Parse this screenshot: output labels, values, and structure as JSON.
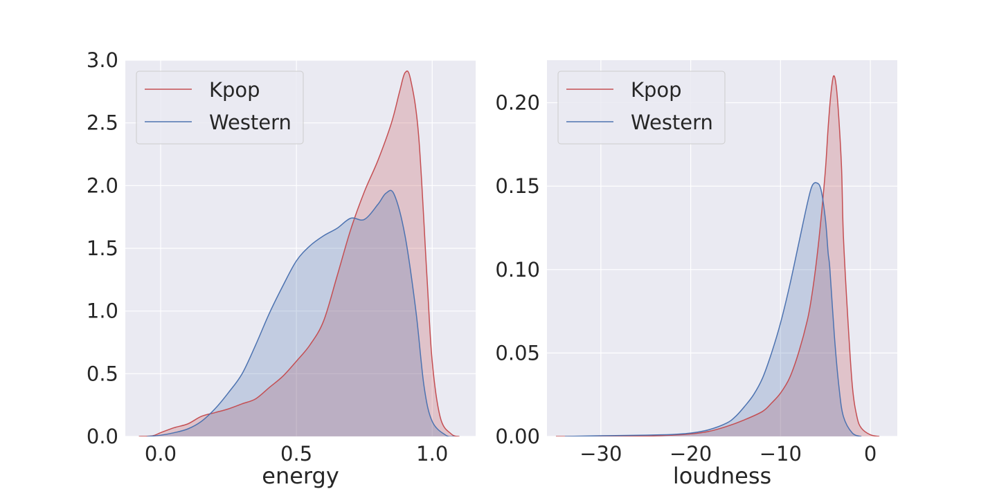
{
  "chart_data": [
    {
      "type": "area",
      "xlabel": "energy",
      "ylabel": "",
      "xlim": [
        -0.13,
        1.16
      ],
      "ylim": [
        0,
        3.0
      ],
      "xticks": [
        0.0,
        0.5,
        1.0
      ],
      "xtick_labels": [
        "0.0",
        "0.5",
        "1.0"
      ],
      "yticks": [
        0.0,
        0.5,
        1.0,
        1.5,
        2.0,
        2.5,
        3.0
      ],
      "ytick_labels": [
        "0.0",
        "0.5",
        "1.0",
        "1.5",
        "2.0",
        "2.5",
        "3.0"
      ],
      "grid": true,
      "legend_placement": "upper-left",
      "series": [
        {
          "name": "Kpop",
          "color": "#c44e52",
          "x": [
            -0.08,
            -0.03,
            0.0,
            0.05,
            0.1,
            0.15,
            0.2,
            0.25,
            0.3,
            0.35,
            0.4,
            0.45,
            0.5,
            0.55,
            0.6,
            0.65,
            0.7,
            0.75,
            0.8,
            0.85,
            0.88,
            0.9,
            0.92,
            0.95,
            0.98,
            1.0,
            1.03,
            1.07,
            1.1
          ],
          "y": [
            0.0,
            0.005,
            0.03,
            0.07,
            0.1,
            0.16,
            0.19,
            0.22,
            0.26,
            0.3,
            0.39,
            0.48,
            0.6,
            0.73,
            0.92,
            1.28,
            1.65,
            1.95,
            2.2,
            2.5,
            2.75,
            2.9,
            2.85,
            2.4,
            1.3,
            0.6,
            0.15,
            0.02,
            0.0
          ]
        },
        {
          "name": "Western",
          "color": "#4c72b0",
          "x": [
            -0.05,
            0.0,
            0.05,
            0.1,
            0.15,
            0.2,
            0.25,
            0.3,
            0.35,
            0.4,
            0.45,
            0.5,
            0.55,
            0.6,
            0.65,
            0.7,
            0.75,
            0.8,
            0.83,
            0.86,
            0.9,
            0.94,
            0.97,
            1.0,
            1.05,
            1.08
          ],
          "y": [
            0.0,
            0.01,
            0.03,
            0.06,
            0.12,
            0.22,
            0.35,
            0.5,
            0.73,
            0.98,
            1.2,
            1.4,
            1.52,
            1.6,
            1.66,
            1.74,
            1.73,
            1.85,
            1.94,
            1.93,
            1.6,
            1.0,
            0.4,
            0.12,
            0.01,
            0.0
          ]
        }
      ]
    },
    {
      "type": "area",
      "xlabel": "loudness",
      "ylabel": "",
      "xlim": [
        -36,
        3
      ],
      "ylim": [
        0,
        0.2255
      ],
      "xticks": [
        -30,
        -20,
        -10,
        0
      ],
      "xtick_labels": [
        "−30",
        "−20",
        "−10",
        "0"
      ],
      "yticks": [
        0.0,
        0.05,
        0.1,
        0.15,
        0.2
      ],
      "ytick_labels": [
        "0.00",
        "0.05",
        "0.10",
        "0.15",
        "0.20"
      ],
      "grid": true,
      "legend_placement": "upper-left",
      "series": [
        {
          "name": "Kpop",
          "color": "#c44e52",
          "x": [
            -35,
            -30,
            -25,
            -22,
            -20,
            -18,
            -16,
            -14,
            -12,
            -11,
            -10,
            -9,
            -8,
            -7,
            -6.5,
            -6,
            -5.5,
            -5,
            -4.7,
            -4.4,
            -4.1,
            -3.8,
            -3.5,
            -3.2,
            -3,
            -2.5,
            -2,
            -1.5,
            -1,
            0,
            1
          ],
          "y": [
            0.0,
            0.0,
            0.0002,
            0.0008,
            0.0015,
            0.003,
            0.006,
            0.01,
            0.015,
            0.02,
            0.026,
            0.035,
            0.05,
            0.07,
            0.085,
            0.105,
            0.13,
            0.16,
            0.185,
            0.205,
            0.216,
            0.21,
            0.19,
            0.16,
            0.12,
            0.07,
            0.03,
            0.012,
            0.005,
            0.001,
            0.0
          ]
        },
        {
          "name": "Western",
          "color": "#4c72b0",
          "x": [
            -34,
            -30,
            -25,
            -22,
            -20,
            -18,
            -16,
            -15,
            -14,
            -13,
            -12,
            -11,
            -10,
            -9,
            -8,
            -7,
            -6.5,
            -6,
            -5.5,
            -5,
            -4.7,
            -4.5,
            -4,
            -3.5,
            -3,
            -2,
            -1
          ],
          "y": [
            0.0,
            0.0004,
            0.0008,
            0.0012,
            0.002,
            0.004,
            0.008,
            0.012,
            0.018,
            0.025,
            0.035,
            0.05,
            0.068,
            0.09,
            0.115,
            0.14,
            0.15,
            0.152,
            0.148,
            0.13,
            0.11,
            0.1,
            0.06,
            0.03,
            0.012,
            0.002,
            0.0
          ]
        }
      ]
    }
  ]
}
